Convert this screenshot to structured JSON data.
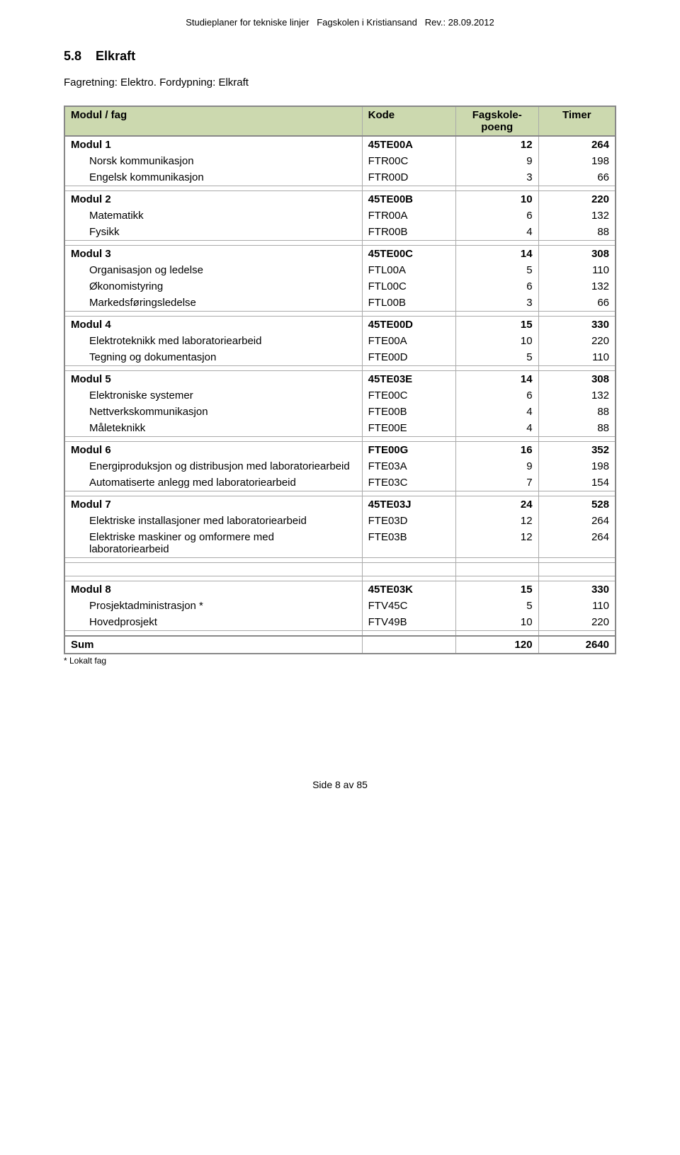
{
  "header": "Studieplaner for tekniske linjer   Fagskolen i Kristiansand   Rev.: 28.09.2012",
  "section_number": "5.8",
  "section_title": "Elkraft",
  "subline": "Fagretning: Elektro. Fordypning: Elkraft",
  "columns": [
    "Modul / fag",
    "Kode",
    "Fagskole-\npoeng",
    "Timer"
  ],
  "modules": [
    {
      "name": "Modul 1",
      "code": "45TE00A",
      "fp": "12",
      "timer": "264",
      "subs": [
        {
          "name": "Norsk kommunikasjon",
          "code": "FTR00C",
          "fp": "9",
          "timer": "198"
        },
        {
          "name": "Engelsk kommunikasjon",
          "code": "FTR00D",
          "fp": "3",
          "timer": "66"
        }
      ]
    },
    {
      "name": "Modul 2",
      "code": "45TE00B",
      "fp": "10",
      "timer": "220",
      "subs": [
        {
          "name": "Matematikk",
          "code": "FTR00A",
          "fp": "6",
          "timer": "132"
        },
        {
          "name": "Fysikk",
          "code": "FTR00B",
          "fp": "4",
          "timer": "88"
        }
      ]
    },
    {
      "name": "Modul 3",
      "code": "45TE00C",
      "fp": "14",
      "timer": "308",
      "subs": [
        {
          "name": "Organisasjon og ledelse",
          "code": "FTL00A",
          "fp": "5",
          "timer": "110"
        },
        {
          "name": "Økonomistyring",
          "code": "FTL00C",
          "fp": "6",
          "timer": "132"
        },
        {
          "name": "Markedsføringsledelse",
          "code": "FTL00B",
          "fp": "3",
          "timer": "66"
        }
      ]
    },
    {
      "name": "Modul 4",
      "code": "45TE00D",
      "fp": "15",
      "timer": "330",
      "subs": [
        {
          "name": "Elektroteknikk med laboratoriearbeid",
          "code": "FTE00A",
          "fp": "10",
          "timer": "220"
        },
        {
          "name": "Tegning og dokumentasjon",
          "code": "FTE00D",
          "fp": "5",
          "timer": "110"
        }
      ]
    },
    {
      "name": "Modul 5",
      "code": "45TE03E",
      "fp": "14",
      "timer": "308",
      "subs": [
        {
          "name": "Elektroniske systemer",
          "code": "FTE00C",
          "fp": "6",
          "timer": "132"
        },
        {
          "name": "Nettverkskommunikasjon",
          "code": "FTE00B",
          "fp": "4",
          "timer": "88"
        },
        {
          "name": "Måleteknikk",
          "code": "FTE00E",
          "fp": "4",
          "timer": "88"
        }
      ]
    },
    {
      "name": "Modul 6",
      "code": "FTE00G",
      "fp": "16",
      "timer": "352",
      "subs": [
        {
          "name": "Energiproduksjon og distribusjon med laboratoriearbeid",
          "code": "FTE03A",
          "fp": "9",
          "timer": "198"
        },
        {
          "name": "Automatiserte anlegg med laboratoriearbeid",
          "code": "FTE03C",
          "fp": "7",
          "timer": "154"
        }
      ]
    },
    {
      "name": "Modul 7",
      "code": "45TE03J",
      "fp": "24",
      "timer": "528",
      "subs": [
        {
          "name": "Elektriske installasjoner med laboratoriearbeid",
          "code": "FTE03D",
          "fp": "12",
          "timer": "264"
        },
        {
          "name": "Elektriske maskiner og omformere med laboratoriearbeid",
          "code": "FTE03B",
          "fp": "12",
          "timer": "264"
        }
      ],
      "trailing_empty_module": true
    },
    {
      "name": "Modul 8",
      "code": "45TE03K",
      "fp": "15",
      "timer": "330",
      "subs": [
        {
          "name": "Prosjektadministrasjon *",
          "code": "FTV45C",
          "fp": "5",
          "timer": "110"
        },
        {
          "name": "Hovedprosjekt",
          "code": "FTV49B",
          "fp": "10",
          "timer": "220"
        }
      ]
    }
  ],
  "sum": {
    "name": "Sum",
    "fp": "120",
    "timer": "2640"
  },
  "footnote": "* Lokalt fag",
  "footer": "Side 8 av 85",
  "colors": {
    "header_bg": "#ccd9af",
    "border": "#888888",
    "inner_border": "#aaaaaa",
    "text": "#000000",
    "background": "#ffffff"
  }
}
